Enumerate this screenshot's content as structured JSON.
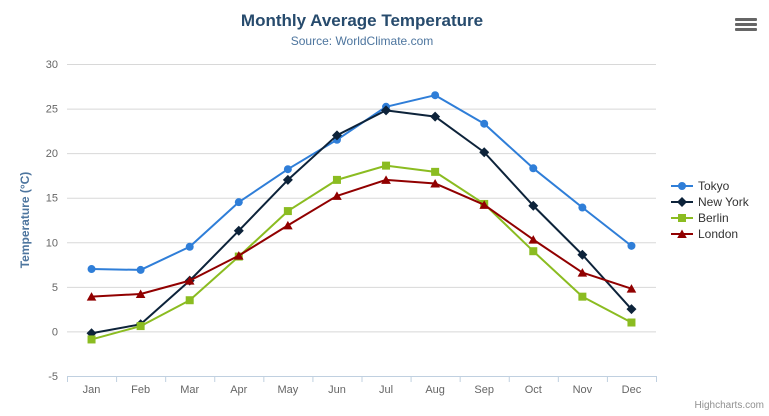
{
  "header": {
    "title": "Monthly Average Temperature",
    "subtitle": "Source: WorldClimate.com"
  },
  "credit": "Highcharts.com",
  "chart_data": {
    "type": "line",
    "title": "Monthly Average Temperature",
    "subtitle": "Source: WorldClimate.com",
    "categories": [
      "Jan",
      "Feb",
      "Mar",
      "Apr",
      "May",
      "Jun",
      "Jul",
      "Aug",
      "Sep",
      "Oct",
      "Nov",
      "Dec"
    ],
    "series": [
      {
        "name": "Tokyo",
        "color": "#2f7ed8",
        "marker": "circle",
        "values": [
          7.0,
          6.9,
          9.5,
          14.5,
          18.2,
          21.5,
          25.2,
          26.5,
          23.3,
          18.3,
          13.9,
          9.6
        ]
      },
      {
        "name": "New York",
        "color": "#0d233a",
        "marker": "diamond",
        "values": [
          -0.2,
          0.8,
          5.7,
          11.3,
          17.0,
          22.0,
          24.8,
          24.1,
          20.1,
          14.1,
          8.6,
          2.5
        ]
      },
      {
        "name": "Berlin",
        "color": "#8bbc21",
        "marker": "square",
        "values": [
          -0.9,
          0.6,
          3.5,
          8.4,
          13.5,
          17.0,
          18.6,
          17.9,
          14.3,
          9.0,
          3.9,
          1.0
        ]
      },
      {
        "name": "London",
        "color": "#910000",
        "marker": "triangle",
        "values": [
          3.9,
          4.2,
          5.7,
          8.5,
          11.9,
          15.2,
          17.0,
          16.6,
          14.2,
          10.3,
          6.6,
          4.8
        ]
      }
    ],
    "xlabel": "",
    "ylabel": "Temperature (°C)",
    "ylim": [
      -5,
      30
    ],
    "ytick_step": 5,
    "grid": true,
    "legend_position": "right",
    "axis_line_color": "#c0d0e0",
    "gridline_color": "#d8d8d8"
  }
}
